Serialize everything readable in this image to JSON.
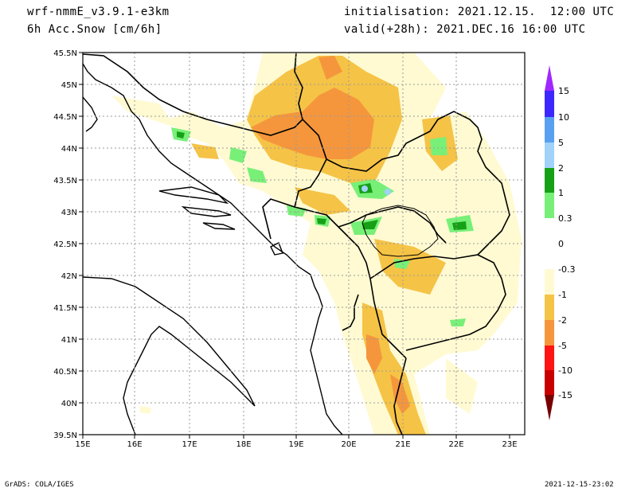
{
  "header": {
    "model": "wrf-nmmE_v3.9.1-e3km",
    "variable": "6h Acc.Snow [cm/6h]",
    "init": "initialisation: 2021.12.15.  12:00 UTC",
    "valid": "valid(+28h): 2021.DEC.16 16:00 UTC"
  },
  "footer": {
    "credit": "GrADS: COLA/IGES",
    "timestamp": "2021-12-15-23:02"
  },
  "map": {
    "lon_ticks": [
      "15E",
      "16E",
      "17E",
      "18E",
      "19E",
      "20E",
      "21E",
      "22E",
      "23E"
    ],
    "lat_ticks": [
      "45.5N",
      "45N",
      "44.5N",
      "44N",
      "43.5N",
      "43N",
      "42.5N",
      "42N",
      "41.5N",
      "41N",
      "40.5N",
      "40N",
      "39.5N"
    ]
  },
  "colorbar": {
    "labels": [
      "15",
      "10",
      "5",
      "2",
      "1",
      "0.3",
      "0",
      "-0.3",
      "-1",
      "-2",
      "-5",
      "-10",
      "-15"
    ],
    "colors": [
      "#3c28ff",
      "#5aa0f0",
      "#a0d2fa",
      "#16a016",
      "#78f078",
      "#ffffff",
      "#fffad2",
      "#f5c346",
      "#f5963c",
      "#ff1414",
      "#c80000",
      "#960000"
    ],
    "top_arrow_color": "#a028ff",
    "bottom_arrow_color": "#780000"
  }
}
